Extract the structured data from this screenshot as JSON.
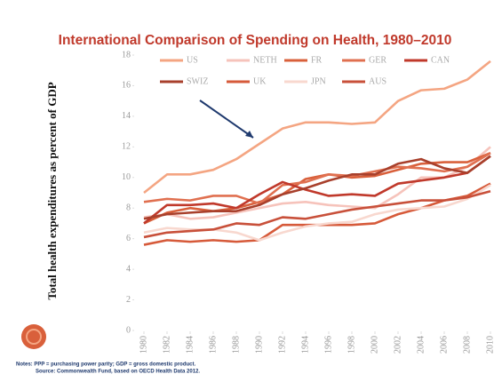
{
  "chart_data": {
    "type": "line",
    "title": "International Comparison of Spending on Health, 1980–2010",
    "y_label": "Total health expenditures as percent of GDP",
    "notes": "Notes: PPP = purchasing power parity; GDP = gross domestic product.",
    "source": "Source: Commonwealth Fund, based on OECD Health Data 2012.",
    "x": [
      1980,
      1982,
      1984,
      1986,
      1988,
      1990,
      1992,
      1994,
      1996,
      1998,
      2000,
      2002,
      2004,
      2006,
      2008,
      2010
    ],
    "xlim": [
      1980,
      2010
    ],
    "xticks": [
      1980,
      1982,
      1984,
      1986,
      1988,
      1990,
      1992,
      1994,
      1996,
      1998,
      2000,
      2002,
      2004,
      2006,
      2008,
      2010
    ],
    "ylim": [
      0,
      18
    ],
    "yticks": [
      0,
      2,
      4,
      6,
      8,
      10,
      12,
      14,
      16,
      18
    ],
    "series": [
      {
        "name": "US",
        "color": "#f4a582",
        "values": [
          9.0,
          10.2,
          10.2,
          10.5,
          11.2,
          12.2,
          13.2,
          13.6,
          13.6,
          13.5,
          13.6,
          15.0,
          15.7,
          15.8,
          16.4,
          17.6
        ]
      },
      {
        "name": "NETH",
        "color": "#f6c3bb",
        "values": [
          7.4,
          7.6,
          7.3,
          7.4,
          7.7,
          8.0,
          8.3,
          8.4,
          8.2,
          8.1,
          8.0,
          8.9,
          10.0,
          10.0,
          10.7,
          12.0
        ]
      },
      {
        "name": "FR",
        "color": "#d9603b",
        "values": [
          7.0,
          7.7,
          8.0,
          7.8,
          8.0,
          8.4,
          8.9,
          9.9,
          10.2,
          10.0,
          10.1,
          10.5,
          10.9,
          11.0,
          11.0,
          11.6
        ]
      },
      {
        "name": "GER",
        "color": "#e07050",
        "values": [
          8.4,
          8.6,
          8.5,
          8.8,
          8.8,
          8.3,
          9.5,
          9.7,
          10.2,
          10.1,
          10.4,
          10.7,
          10.6,
          10.4,
          10.7,
          11.6
        ]
      },
      {
        "name": "CAN",
        "color": "#c0392b",
        "values": [
          7.0,
          8.2,
          8.2,
          8.3,
          8.0,
          8.9,
          9.7,
          9.2,
          8.8,
          8.9,
          8.8,
          9.6,
          9.8,
          10.0,
          10.3,
          11.4
        ]
      },
      {
        "name": "SWIZ",
        "color": "#a8402c",
        "values": [
          7.3,
          7.6,
          7.7,
          7.8,
          7.8,
          8.2,
          8.9,
          9.3,
          9.8,
          10.2,
          10.2,
          10.9,
          11.2,
          10.6,
          10.3,
          11.4
        ]
      },
      {
        "name": "UK",
        "color": "#d65a3a",
        "values": [
          5.6,
          5.9,
          5.8,
          5.9,
          5.8,
          5.9,
          6.9,
          6.9,
          6.9,
          6.9,
          7.0,
          7.6,
          8.0,
          8.5,
          8.8,
          9.6
        ]
      },
      {
        "name": "JPN",
        "color": "#f8d8cf",
        "values": [
          6.4,
          6.7,
          6.6,
          6.6,
          6.4,
          5.9,
          6.4,
          6.8,
          7.0,
          7.1,
          7.6,
          7.9,
          8.0,
          8.1,
          8.6,
          9.5
        ]
      },
      {
        "name": "AUS",
        "color": "#c8503a",
        "values": [
          6.1,
          6.4,
          6.5,
          6.6,
          7.0,
          6.9,
          7.4,
          7.3,
          7.6,
          7.9,
          8.1,
          8.3,
          8.5,
          8.5,
          8.7,
          9.1
        ]
      }
    ]
  }
}
